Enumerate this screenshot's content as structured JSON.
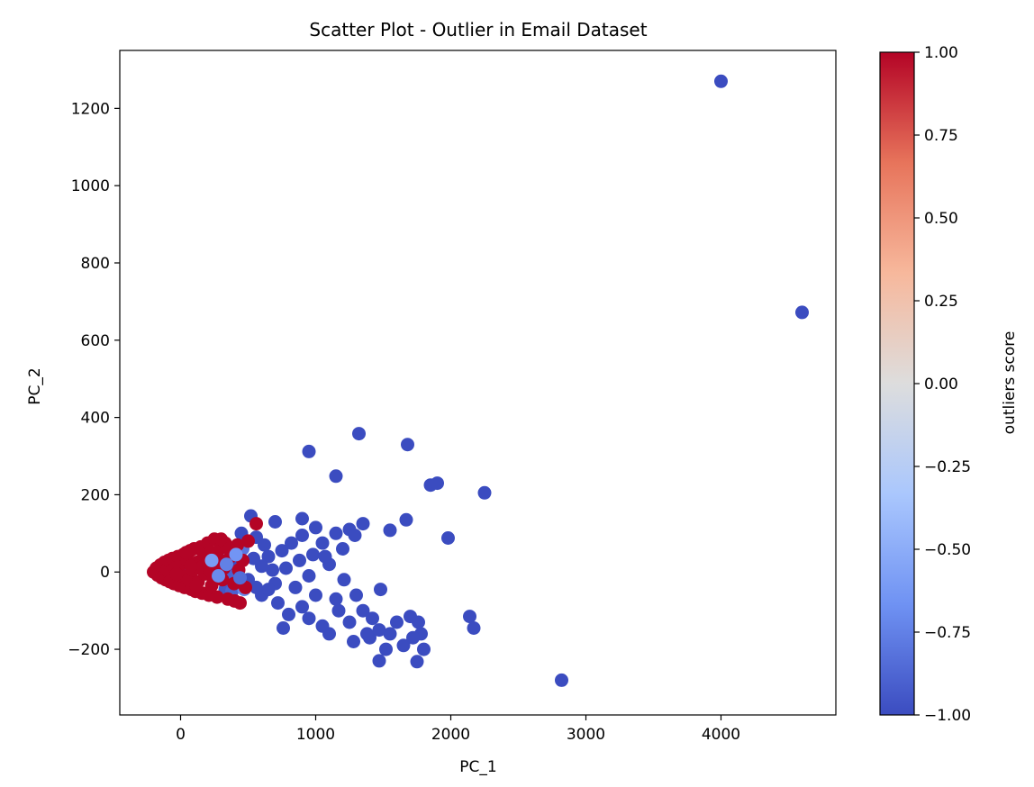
{
  "chart_data": {
    "type": "scatter",
    "title": "Scatter Plot - Outlier in Email Dataset",
    "xlabel": "PC_1",
    "ylabel": "PC_2",
    "xlim": [
      -450,
      4850
    ],
    "ylim": [
      -370,
      1350
    ],
    "xticks": [
      {
        "value": 0,
        "label": "0"
      },
      {
        "value": 1000,
        "label": "1000"
      },
      {
        "value": 2000,
        "label": "2000"
      },
      {
        "value": 3000,
        "label": "3000"
      },
      {
        "value": 4000,
        "label": "4000"
      }
    ],
    "yticks": [
      {
        "value": -200,
        "label": "−200"
      },
      {
        "value": 0,
        "label": "0"
      },
      {
        "value": 200,
        "label": "200"
      },
      {
        "value": 400,
        "label": "400"
      },
      {
        "value": 600,
        "label": "600"
      },
      {
        "value": 800,
        "label": "800"
      },
      {
        "value": 1000,
        "label": "1000"
      },
      {
        "value": 1200,
        "label": "1200"
      }
    ],
    "grid": false,
    "colormap": "coolwarm",
    "colormap_stops": [
      "#3b4cc0",
      "#6f92f3",
      "#aac7fd",
      "#dddddd",
      "#f7b89c",
      "#e7745b",
      "#b40426"
    ],
    "colorbar": {
      "label": "outliers score",
      "range": [
        -1.0,
        1.0
      ],
      "ticks": [
        {
          "value": 1.0,
          "label": "1.00"
        },
        {
          "value": 0.75,
          "label": "0.75"
        },
        {
          "value": 0.5,
          "label": "0.50"
        },
        {
          "value": 0.25,
          "label": "0.25"
        },
        {
          "value": 0.0,
          "label": "0.00"
        },
        {
          "value": -0.25,
          "label": "−0.25"
        },
        {
          "value": -0.5,
          "label": "−0.50"
        },
        {
          "value": -0.75,
          "label": "−0.75"
        },
        {
          "value": -1.0,
          "label": "−1.00"
        }
      ]
    },
    "points": [
      {
        "x": 4000,
        "y": 1270,
        "score": -1
      },
      {
        "x": 4600,
        "y": 672,
        "score": -1
      },
      {
        "x": 2820,
        "y": -280,
        "score": -1
      },
      {
        "x": 950,
        "y": 312,
        "score": -1
      },
      {
        "x": 1320,
        "y": 358,
        "score": -1
      },
      {
        "x": 1680,
        "y": 330,
        "score": -1
      },
      {
        "x": 1150,
        "y": 248,
        "score": -1
      },
      {
        "x": 1850,
        "y": 225,
        "score": -1
      },
      {
        "x": 1900,
        "y": 230,
        "score": -1
      },
      {
        "x": 2250,
        "y": 205,
        "score": -1
      },
      {
        "x": 520,
        "y": 145,
        "score": -1
      },
      {
        "x": 1670,
        "y": 135,
        "score": -1
      },
      {
        "x": 1980,
        "y": 88,
        "score": -1
      },
      {
        "x": 1550,
        "y": 108,
        "score": -1
      },
      {
        "x": 900,
        "y": 138,
        "score": -1
      },
      {
        "x": 1350,
        "y": 125,
        "score": -1
      },
      {
        "x": 2140,
        "y": -115,
        "score": -1
      },
      {
        "x": 2170,
        "y": -145,
        "score": -1
      },
      {
        "x": 1470,
        "y": -230,
        "score": -1
      },
      {
        "x": 1750,
        "y": -232,
        "score": -1
      },
      {
        "x": 1800,
        "y": -200,
        "score": -1
      },
      {
        "x": 1700,
        "y": -115,
        "score": -1
      },
      {
        "x": 1480,
        "y": -45,
        "score": -1
      },
      {
        "x": 1280,
        "y": -180,
        "score": -1
      },
      {
        "x": 1100,
        "y": -160,
        "score": -1
      },
      {
        "x": 760,
        "y": -145,
        "score": -1
      },
      {
        "x": 700,
        "y": 130,
        "score": -1
      },
      {
        "x": 1000,
        "y": 115,
        "score": -1
      },
      {
        "x": 1200,
        "y": 60,
        "score": -1
      },
      {
        "x": 1250,
        "y": 110,
        "score": -1
      },
      {
        "x": 1050,
        "y": 75,
        "score": -1
      },
      {
        "x": 1100,
        "y": 20,
        "score": -1
      },
      {
        "x": 1210,
        "y": -20,
        "score": -1
      },
      {
        "x": 1350,
        "y": -100,
        "score": -1
      },
      {
        "x": 1550,
        "y": -160,
        "score": -1
      },
      {
        "x": 1650,
        "y": -190,
        "score": -1
      },
      {
        "x": 1780,
        "y": -160,
        "score": -1
      },
      {
        "x": 1400,
        "y": -170,
        "score": -1
      },
      {
        "x": 1170,
        "y": -100,
        "score": -1
      },
      {
        "x": 1000,
        "y": -60,
        "score": -1
      },
      {
        "x": 900,
        "y": -90,
        "score": -1
      },
      {
        "x": 850,
        "y": -40,
        "score": -1
      },
      {
        "x": 950,
        "y": -10,
        "score": -1
      },
      {
        "x": 880,
        "y": 30,
        "score": -1
      },
      {
        "x": 820,
        "y": 75,
        "score": -1
      },
      {
        "x": 780,
        "y": 10,
        "score": -1
      },
      {
        "x": 700,
        "y": -30,
        "score": -1
      },
      {
        "x": 650,
        "y": 40,
        "score": -1
      },
      {
        "x": 600,
        "y": -60,
        "score": -1
      },
      {
        "x": 560,
        "y": 90,
        "score": -1
      },
      {
        "x": 450,
        "y": 100,
        "score": -1
      },
      {
        "x": 620,
        "y": 70,
        "score": -1
      },
      {
        "x": 720,
        "y": -80,
        "score": -1
      },
      {
        "x": 800,
        "y": -110,
        "score": -1
      },
      {
        "x": 950,
        "y": -120,
        "score": -1
      },
      {
        "x": 1300,
        "y": -60,
        "score": -1
      },
      {
        "x": 1420,
        "y": -120,
        "score": -1
      },
      {
        "x": 1520,
        "y": -200,
        "score": -1
      },
      {
        "x": 1600,
        "y": -130,
        "score": -1
      },
      {
        "x": 1050,
        "y": -140,
        "score": -1
      },
      {
        "x": 1150,
        "y": -70,
        "score": -1
      },
      {
        "x": 1250,
        "y": -130,
        "score": -1
      },
      {
        "x": 1380,
        "y": -160,
        "score": -1
      },
      {
        "x": 1470,
        "y": -150,
        "score": -1
      },
      {
        "x": 1720,
        "y": -170,
        "score": -1
      },
      {
        "x": 1760,
        "y": -130,
        "score": -1
      },
      {
        "x": 980,
        "y": 45,
        "score": -1
      },
      {
        "x": 1070,
        "y": 40,
        "score": -1
      },
      {
        "x": 1290,
        "y": 95,
        "score": -1
      },
      {
        "x": 1150,
        "y": 100,
        "score": -1
      },
      {
        "x": 900,
        "y": 95,
        "score": -1
      },
      {
        "x": 750,
        "y": 55,
        "score": -1
      },
      {
        "x": 680,
        "y": 5,
        "score": -1
      },
      {
        "x": 600,
        "y": 15,
        "score": -1
      },
      {
        "x": 540,
        "y": 35,
        "score": -1
      },
      {
        "x": 500,
        "y": -20,
        "score": -1
      },
      {
        "x": 650,
        "y": -45,
        "score": -1
      },
      {
        "x": 560,
        "y": -40,
        "score": -1
      },
      {
        "x": 400,
        "y": 20,
        "score": -1
      },
      {
        "x": 420,
        "y": -30,
        "score": -1
      },
      {
        "x": 380,
        "y": 55,
        "score": -1
      },
      {
        "x": 460,
        "y": 60,
        "score": -0.8
      },
      {
        "x": 350,
        "y": -10,
        "score": -0.9
      },
      {
        "x": 300,
        "y": 30,
        "score": -1
      },
      {
        "x": 30,
        "y": 10,
        "score": -1
      },
      {
        "x": 250,
        "y": -5,
        "score": -0.85
      },
      {
        "x": 330,
        "y": -45,
        "score": -0.95
      },
      {
        "x": 380,
        "y": -50,
        "score": -0.9
      },
      {
        "x": 470,
        "y": -45,
        "score": -0.7
      },
      {
        "x": -200,
        "y": 0,
        "score": 1
      },
      {
        "x": -180,
        "y": 10,
        "score": 1
      },
      {
        "x": -170,
        "y": -8,
        "score": 1
      },
      {
        "x": -150,
        "y": 18,
        "score": 1
      },
      {
        "x": -140,
        "y": -15,
        "score": 1
      },
      {
        "x": -120,
        "y": 25,
        "score": 1
      },
      {
        "x": -110,
        "y": -20,
        "score": 1
      },
      {
        "x": -100,
        "y": 5,
        "score": 1
      },
      {
        "x": -90,
        "y": 30,
        "score": 1
      },
      {
        "x": -80,
        "y": -25,
        "score": 1
      },
      {
        "x": -60,
        "y": 35,
        "score": 1
      },
      {
        "x": -50,
        "y": -30,
        "score": 1
      },
      {
        "x": -40,
        "y": 10,
        "score": 1
      },
      {
        "x": -20,
        "y": 40,
        "score": 1
      },
      {
        "x": -10,
        "y": -35,
        "score": 1
      },
      {
        "x": 0,
        "y": 20,
        "score": 1
      },
      {
        "x": 10,
        "y": -10,
        "score": 1
      },
      {
        "x": 20,
        "y": 45,
        "score": 1
      },
      {
        "x": 30,
        "y": -40,
        "score": 1
      },
      {
        "x": 50,
        "y": 30,
        "score": 1
      },
      {
        "x": 60,
        "y": -20,
        "score": 1
      },
      {
        "x": 70,
        "y": 55,
        "score": 1
      },
      {
        "x": 80,
        "y": -45,
        "score": 1
      },
      {
        "x": 90,
        "y": 5,
        "score": 1
      },
      {
        "x": 100,
        "y": 60,
        "score": 1
      },
      {
        "x": 110,
        "y": -50,
        "score": 1
      },
      {
        "x": 120,
        "y": 25,
        "score": 1
      },
      {
        "x": 130,
        "y": -25,
        "score": 1
      },
      {
        "x": 150,
        "y": 65,
        "score": 1
      },
      {
        "x": 160,
        "y": -55,
        "score": 1
      },
      {
        "x": 170,
        "y": 40,
        "score": 1
      },
      {
        "x": 180,
        "y": -5,
        "score": 1
      },
      {
        "x": 200,
        "y": 75,
        "score": 1
      },
      {
        "x": 210,
        "y": -60,
        "score": 1
      },
      {
        "x": 220,
        "y": 50,
        "score": 1
      },
      {
        "x": 230,
        "y": -35,
        "score": 1
      },
      {
        "x": 250,
        "y": 85,
        "score": 1
      },
      {
        "x": 260,
        "y": 15,
        "score": 1
      },
      {
        "x": 270,
        "y": -65,
        "score": 1
      },
      {
        "x": 290,
        "y": 60,
        "score": 1
      },
      {
        "x": 300,
        "y": 85,
        "score": 1
      },
      {
        "x": 310,
        "y": -20,
        "score": 1
      },
      {
        "x": 330,
        "y": 75,
        "score": 1
      },
      {
        "x": 350,
        "y": -70,
        "score": 1
      },
      {
        "x": 370,
        "y": 40,
        "score": 1
      },
      {
        "x": 400,
        "y": -75,
        "score": 1
      },
      {
        "x": 420,
        "y": 70,
        "score": 1
      },
      {
        "x": 440,
        "y": -80,
        "score": 1
      },
      {
        "x": 460,
        "y": 30,
        "score": 1
      },
      {
        "x": 480,
        "y": -40,
        "score": 1
      },
      {
        "x": 500,
        "y": 80,
        "score": 1
      },
      {
        "x": 560,
        "y": 125,
        "score": 1
      },
      {
        "x": 40,
        "y": 50,
        "score": 1
      },
      {
        "x": 140,
        "y": 10,
        "score": 1
      },
      {
        "x": 190,
        "y": 20,
        "score": 1
      },
      {
        "x": 240,
        "y": -15,
        "score": 1
      },
      {
        "x": 280,
        "y": 35,
        "score": 1
      },
      {
        "x": 320,
        "y": 10,
        "score": 1
      },
      {
        "x": 360,
        "y": 60,
        "score": 1
      },
      {
        "x": -30,
        "y": -5,
        "score": 1
      },
      {
        "x": 75,
        "y": 15,
        "score": 1
      },
      {
        "x": 115,
        "y": -35,
        "score": 1
      },
      {
        "x": 165,
        "y": 15,
        "score": 1
      },
      {
        "x": 215,
        "y": 5,
        "score": 1
      },
      {
        "x": 430,
        "y": 5,
        "score": 1
      },
      {
        "x": 395,
        "y": -30,
        "score": 1
      },
      {
        "x": 230,
        "y": 30,
        "score": -0.6
      },
      {
        "x": 280,
        "y": -10,
        "score": -0.7
      },
      {
        "x": 340,
        "y": 20,
        "score": -0.75
      },
      {
        "x": 410,
        "y": 45,
        "score": -0.65
      },
      {
        "x": 440,
        "y": -15,
        "score": -0.85
      }
    ]
  }
}
